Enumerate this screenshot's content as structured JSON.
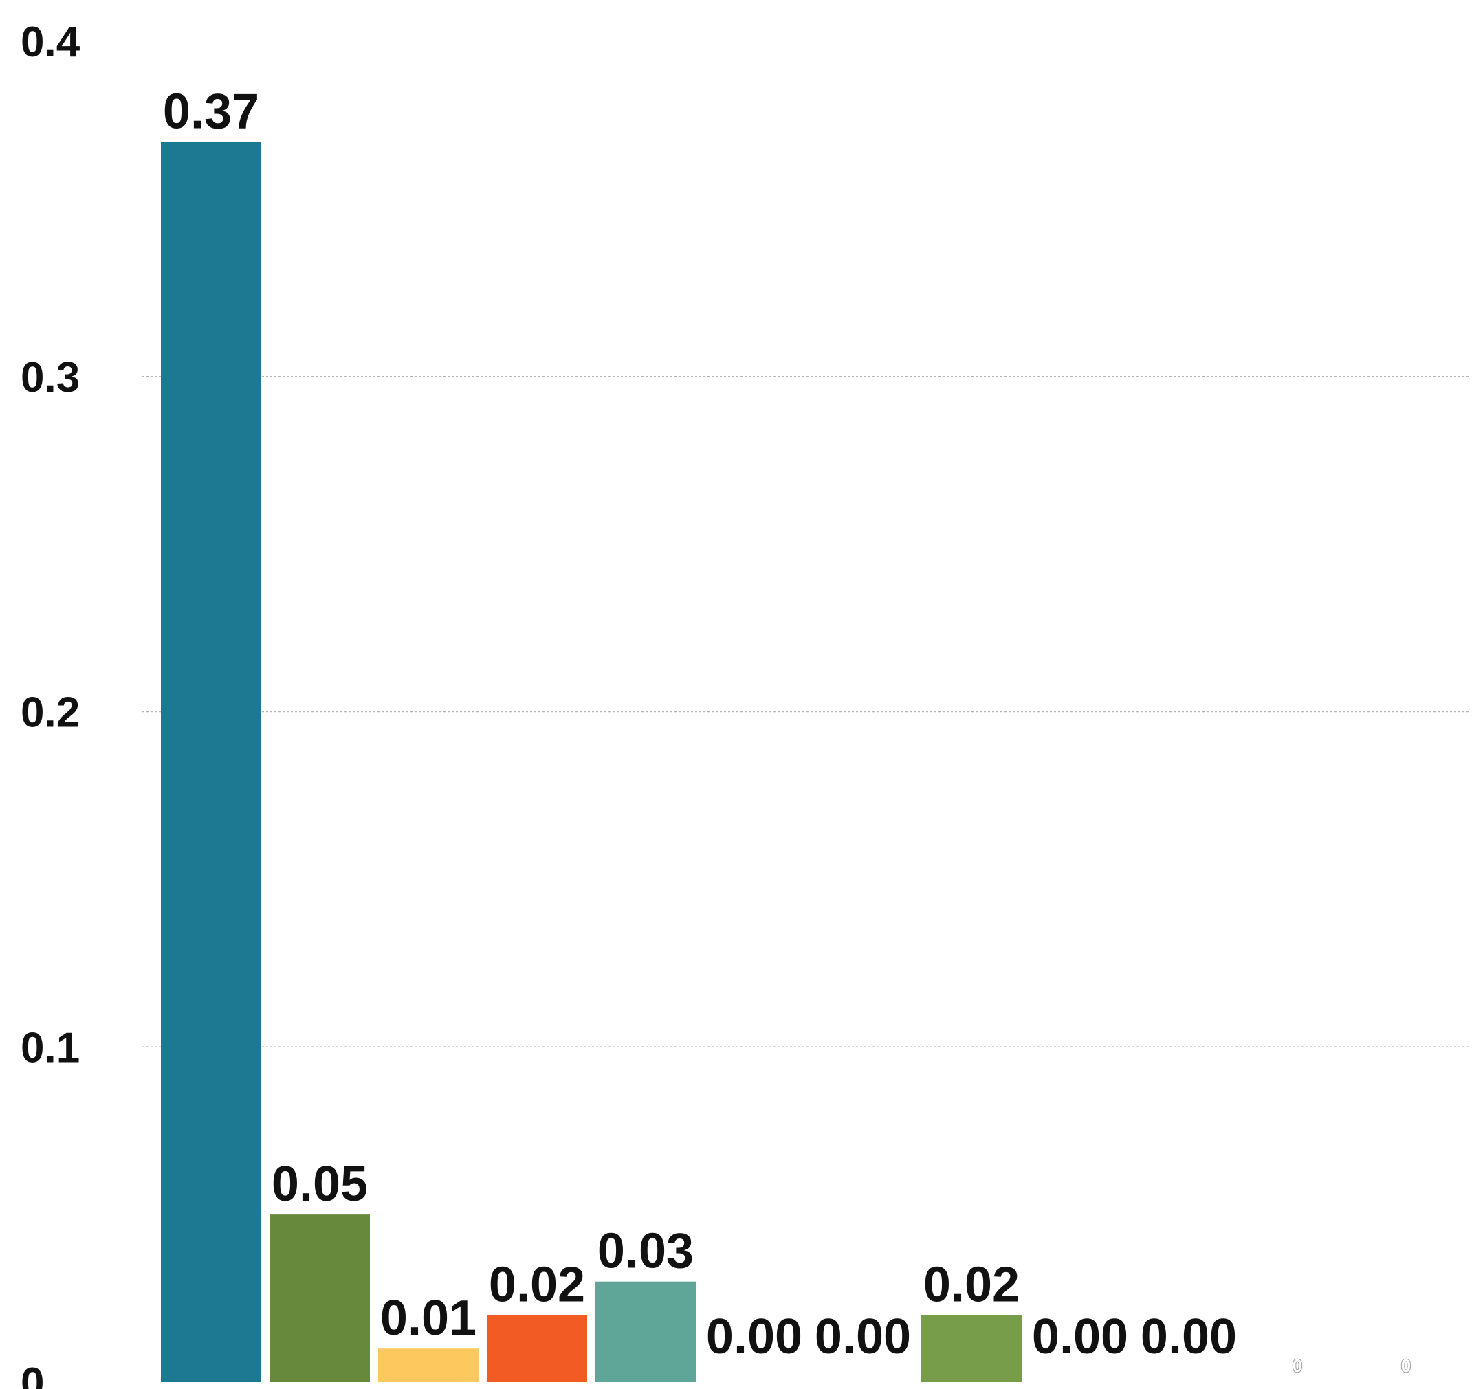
{
  "chart_data": {
    "type": "bar",
    "title": "",
    "xlabel": "",
    "ylabel": "",
    "ylim": [
      0,
      0.4
    ],
    "yticks": [
      "0",
      "0.1",
      "0.2",
      "0.3",
      "0.4"
    ],
    "grid": true,
    "legend": "none",
    "bars": [
      {
        "value": 0.37,
        "label": "0.37",
        "color": "#1d7892"
      },
      {
        "value": 0.05,
        "label": "0.05",
        "color": "#66893b"
      },
      {
        "value": 0.01,
        "label": "0.01",
        "color": "#fdc85e"
      },
      {
        "value": 0.02,
        "label": "0.02",
        "color": "#f35b24"
      },
      {
        "value": 0.03,
        "label": "0.03",
        "color": "#60a698"
      },
      {
        "value": 0.0,
        "label": "0.00",
        "color": "#1d7892"
      },
      {
        "value": 0.0,
        "label": "0.00",
        "color": "#66893b"
      },
      {
        "value": 0.02,
        "label": "0.02",
        "color": "#779d4b"
      },
      {
        "value": 0.0,
        "label": "0.00",
        "color": "#60a698"
      },
      {
        "value": 0.0,
        "label": "0.00",
        "color": "#f35b24"
      },
      {
        "value": 0,
        "label": "0",
        "color": "#1d7892"
      },
      {
        "value": 0,
        "label": "0",
        "color": "#66893b"
      }
    ]
  }
}
